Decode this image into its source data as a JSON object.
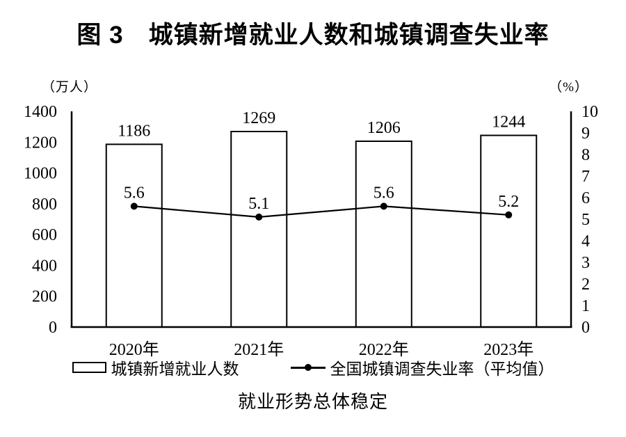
{
  "title": "图 3　城镇新增就业人数和城镇调查失业率",
  "caption": "就业形势总体稳定",
  "colors": {
    "foreground": "#000000",
    "background": "#ffffff",
    "bar_fill": "#ffffff",
    "bar_stroke": "#000000",
    "line_color": "#000000"
  },
  "legend": {
    "bar_label": "城镇新增就业人数",
    "line_label": "全国城镇调查失业率（平均值）"
  },
  "chart_data": {
    "type": "combo",
    "title": "图 3　城镇新增就业人数和城镇调查失业率",
    "categories": [
      "2020年",
      "2021年",
      "2022年",
      "2023年"
    ],
    "series": [
      {
        "name": "城镇新增就业人数",
        "type": "bar",
        "axis": "left",
        "values": [
          1186,
          1269,
          1206,
          1244
        ]
      },
      {
        "name": "全国城镇调查失业率（平均值）",
        "type": "line",
        "axis": "right",
        "values": [
          5.6,
          5.1,
          5.6,
          5.2
        ]
      }
    ],
    "left_axis": {
      "unit": "（万人）",
      "min": 0,
      "max": 1400,
      "tick_step": 200,
      "ticks": [
        0,
        200,
        400,
        600,
        800,
        1000,
        1200,
        1400
      ]
    },
    "right_axis": {
      "unit": "（%）",
      "min": 0,
      "max": 10,
      "tick_step": 1,
      "ticks": [
        0,
        1,
        2,
        3,
        4,
        5,
        6,
        7,
        8,
        9,
        10
      ]
    },
    "grid": false,
    "legend_position": "bottom",
    "footnote": "就业形势总体稳定"
  }
}
